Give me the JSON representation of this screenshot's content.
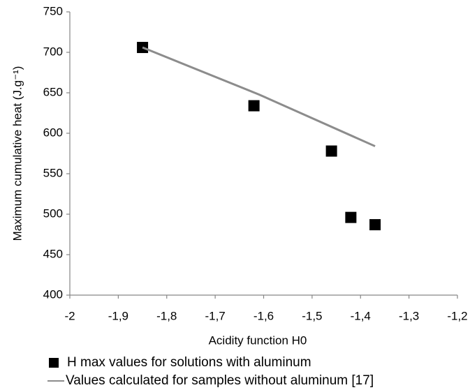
{
  "chart_data": {
    "type": "scatter",
    "xlabel": "Acidity function H0",
    "ylabel": "Maximum cumulative heat (J.g⁻¹)",
    "xlim": [
      -2,
      -1.2
    ],
    "xticks": [
      -2,
      {
        "value": -1.9,
        "label": "-1,9"
      },
      {
        "value": -1.8,
        "label": "-1,8"
      },
      {
        "value": -1.7,
        "label": "-1,7"
      },
      {
        "value": -1.6,
        "label": "-1,6"
      },
      {
        "value": -1.5,
        "label": "-1,5"
      },
      {
        "value": -1.4,
        "label": "-1,4"
      },
      {
        "value": -1.3,
        "label": "-1,3"
      },
      {
        "value": -1.2,
        "label": "-1,2"
      }
    ],
    "ylim": [
      400,
      750
    ],
    "yticks": [
      400,
      450,
      500,
      550,
      600,
      650,
      700,
      750
    ],
    "grid": false,
    "legend": "bottom",
    "series": [
      {
        "name": "H max values for solutions with aluminum",
        "type": "scatter",
        "color": "#000000",
        "x": [
          -1.85,
          -1.62,
          -1.46,
          -1.42,
          -1.37
        ],
        "values": [
          706,
          634,
          578,
          496,
          487
        ]
      },
      {
        "name": "Values calculated for samples without aluminum [17]",
        "type": "line",
        "color": "#8c8c8c",
        "x": [
          -1.85,
          -1.61,
          -1.37
        ],
        "values": [
          706,
          648,
          584
        ]
      }
    ]
  }
}
